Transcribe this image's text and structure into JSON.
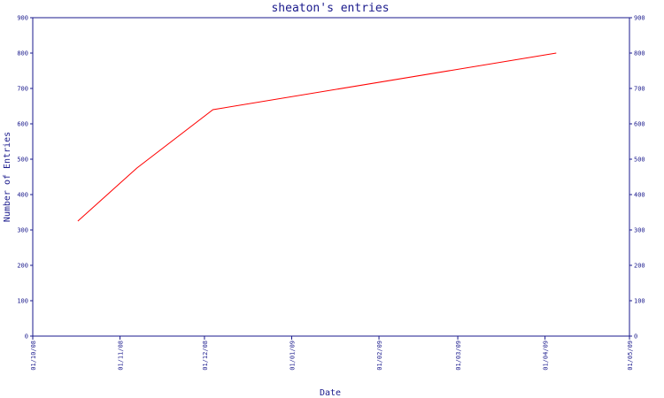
{
  "chart_data": {
    "type": "line",
    "title": "sheaton's entries",
    "xlabel": "Date",
    "ylabel": "Number of Entries",
    "x_ticks": [
      "01/10/08",
      "01/11/08",
      "01/12/08",
      "01/01/09",
      "01/02/09",
      "01/03/09",
      "01/04/09",
      "01/05/09"
    ],
    "y_ticks": [
      "0",
      "100",
      "200",
      "300",
      "400",
      "500",
      "600",
      "700",
      "800",
      "900"
    ],
    "ylim": [
      0,
      900
    ],
    "xlim": [
      "2008-10-01",
      "2009-05-01"
    ],
    "grid": false,
    "series": [
      {
        "color": "#ff0000",
        "points": [
          {
            "x": "2008-10-17",
            "y": 325
          },
          {
            "x": "2008-11-07",
            "y": 475
          },
          {
            "x": "2008-12-04",
            "y": 640
          },
          {
            "x": "2009-04-05",
            "y": 800
          }
        ]
      }
    ]
  }
}
